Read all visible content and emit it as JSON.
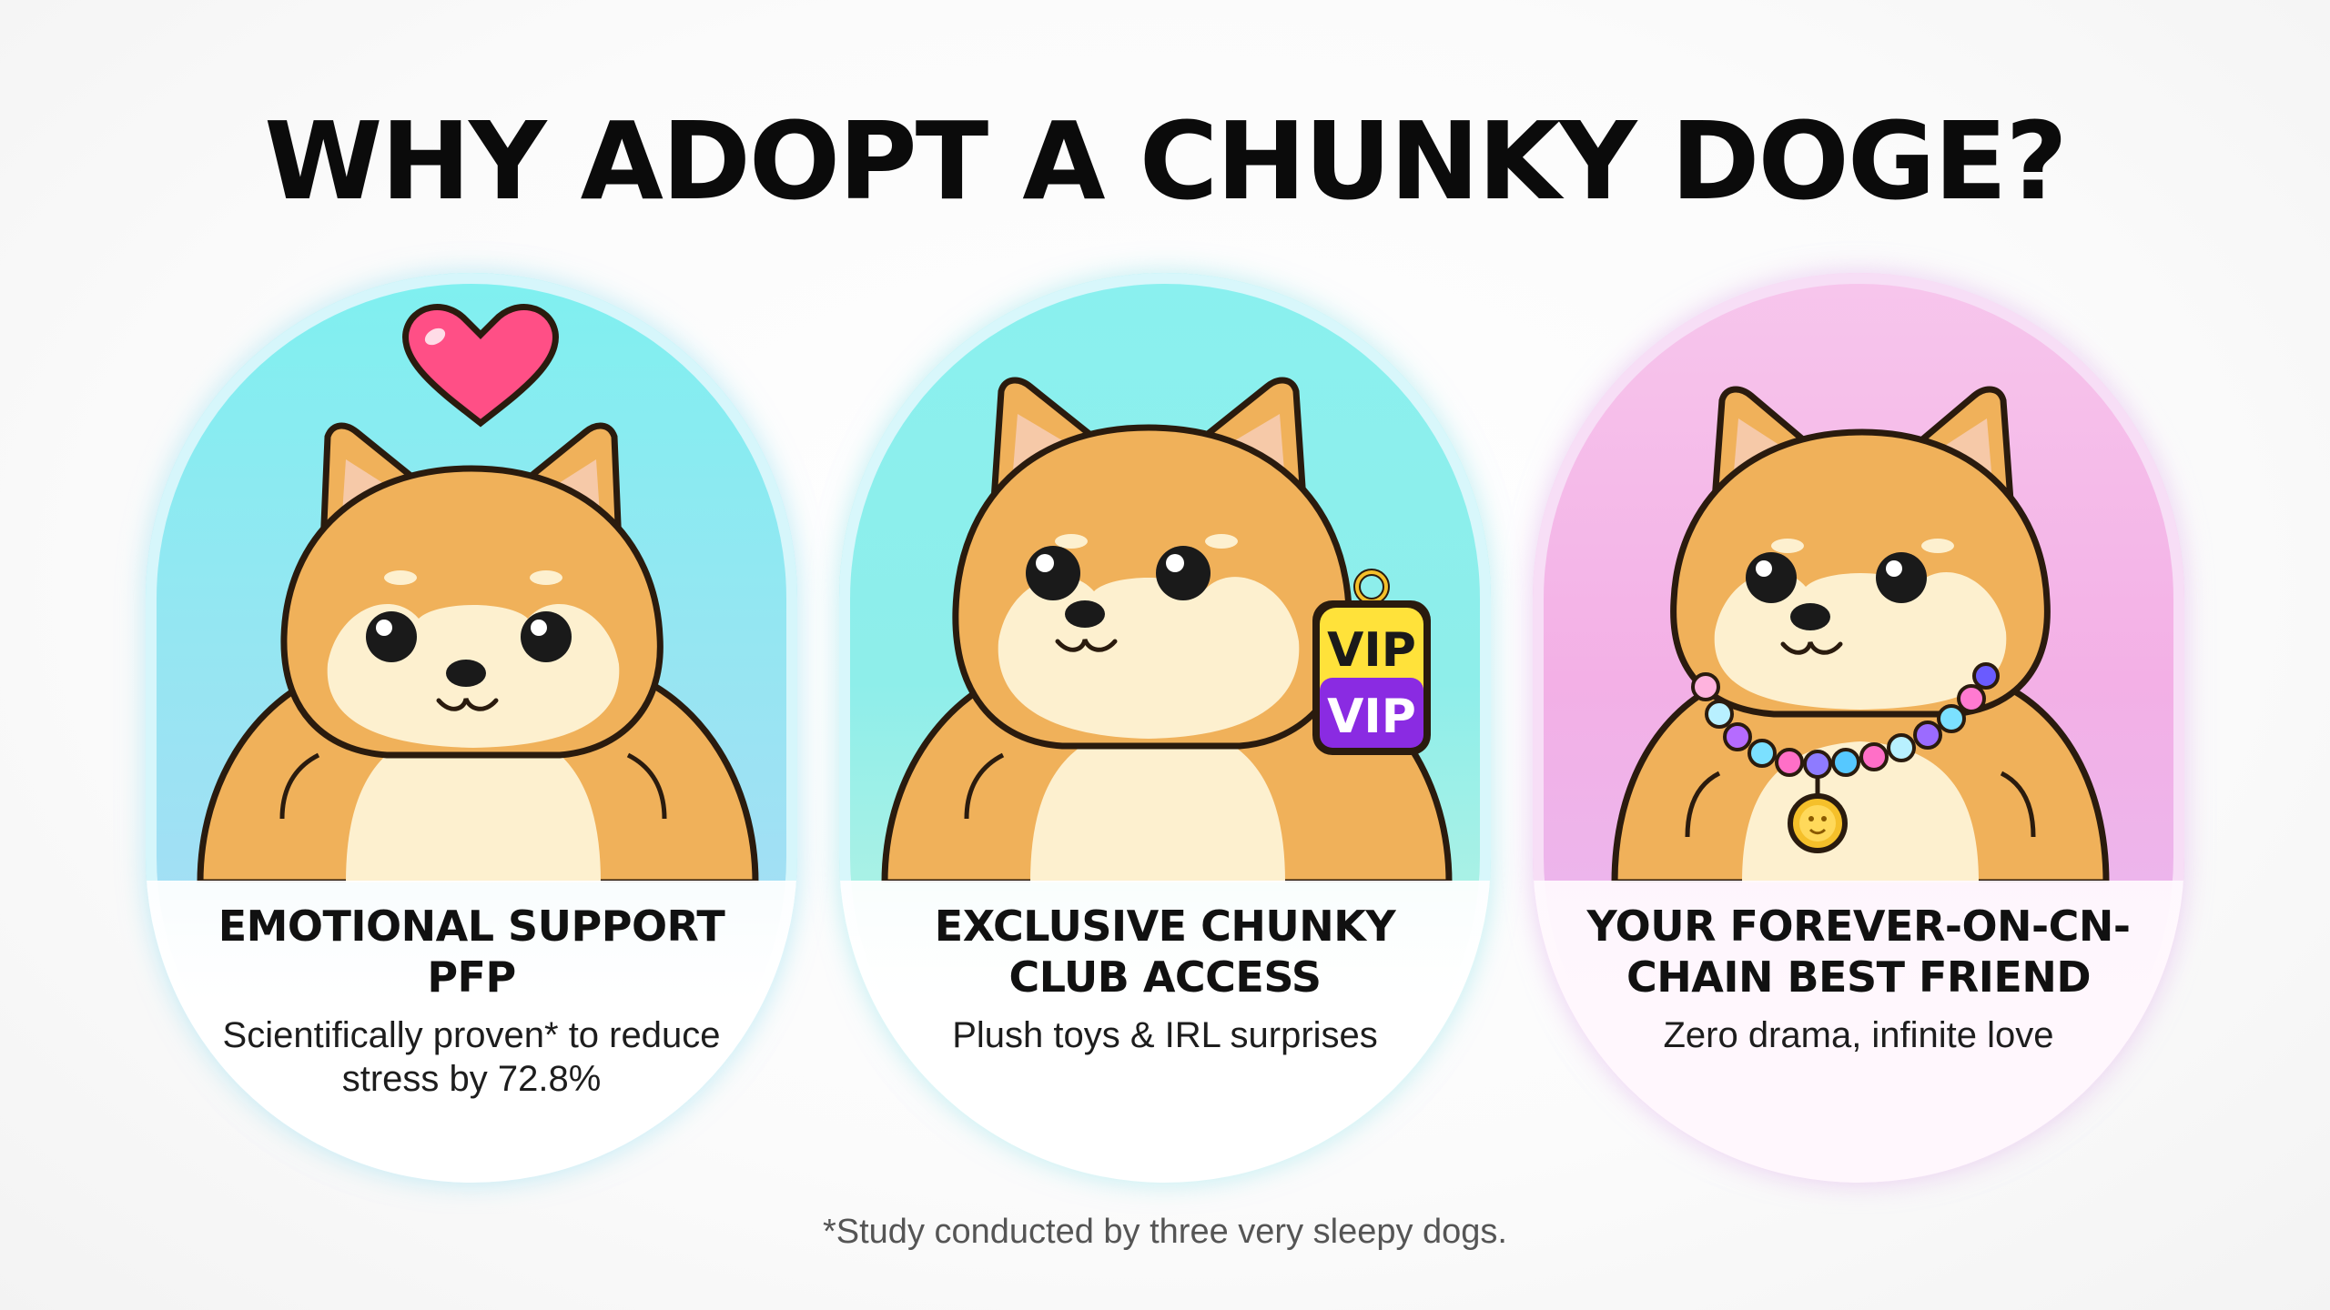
{
  "title": "WHY ADOPT A CHUNKY DOGE?",
  "cards": [
    {
      "heading": "EMOTIONAL SUPPORT PFP",
      "subtitle": "Scientifically proven* to reduce stress by 72.8%",
      "accessory_icon": "heart-icon",
      "colors": {
        "accent": "#7ff0f0",
        "heart": "#ff4f86"
      }
    },
    {
      "heading": "EXCLUSIVE CHUNKY CLUB ACCESS",
      "subtitle": "Plush toys & IRL surprises",
      "accessory_icon": "vip-tag-icon",
      "badge_lines": [
        "VIP",
        "VIP"
      ],
      "colors": {
        "accent": "#8af0ef",
        "badge_top": "#ffe23a",
        "badge_bottom": "#8a2be2"
      }
    },
    {
      "heading": "YOUR FOREVER-ON-CN-CHAIN BEST FRIEND",
      "subtitle": "Zero drama, infinite love",
      "accessory_icon": "bead-necklace-icon",
      "colors": {
        "accent": "#f3b0e6",
        "pendant": "#f5c02a"
      }
    }
  ],
  "footnote": "*Study conducted by three very sleepy dogs.",
  "colors": {
    "doge_fur": "#f0b15a",
    "doge_cream": "#fdf0cf",
    "outline": "#2a1b0e"
  }
}
